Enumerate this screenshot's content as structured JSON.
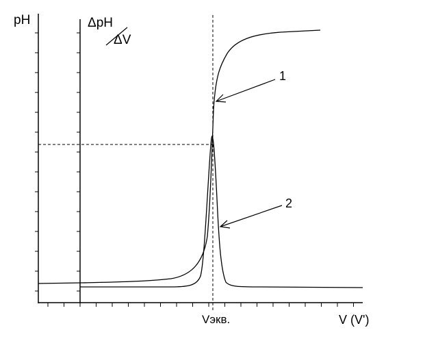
{
  "figure": {
    "y_axis_label": "pH",
    "derivative_axis_label_numerator": "ΔpH",
    "derivative_axis_label_denominator": "ΔV",
    "x_axis_label": "V (V')",
    "equivalence_label": "Vэкв.",
    "curve_labels": [
      "1",
      "2"
    ]
  },
  "colors": {
    "line": "#000000",
    "background": "#ffffff"
  }
}
